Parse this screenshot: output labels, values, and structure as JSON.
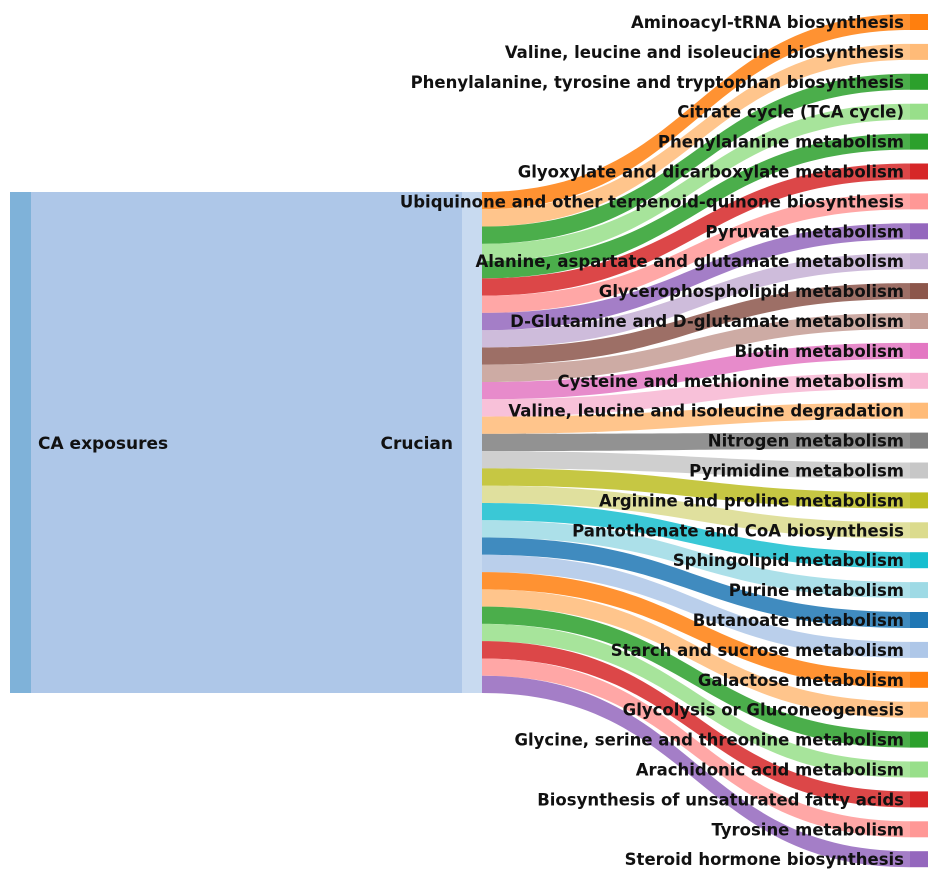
{
  "diagram": {
    "type": "sankey",
    "source_node": {
      "label": "CA exposures",
      "color": "#aec7e8",
      "edge_color": "#7fb2d9"
    },
    "middle_node": {
      "label": "Crucian",
      "color": "#aec7e8",
      "bar_color": "#c8daf0"
    },
    "targets": [
      {
        "label": "Aminoacyl-tRNA biosynthesis",
        "color": "#ff7f0e"
      },
      {
        "label": "Valine, leucine and isoleucine biosynthesis",
        "color": "#ffbb78"
      },
      {
        "label": "Phenylalanine, tyrosine and tryptophan biosynthesis",
        "color": "#2ca02c"
      },
      {
        "label": "Citrate cycle (TCA cycle)",
        "color": "#98df8a"
      },
      {
        "label": "Phenylalanine metabolism",
        "color": "#2ca02c"
      },
      {
        "label": "Glyoxylate and dicarboxylate metabolism",
        "color": "#d62728"
      },
      {
        "label": "Ubiquinone and other terpenoid-quinone biosynthesis",
        "color": "#ff9896"
      },
      {
        "label": "Pyruvate metabolism",
        "color": "#9467bd"
      },
      {
        "label": "Alanine, aspartate and glutamate metabolism",
        "color": "#c5b0d5"
      },
      {
        "label": "Glycerophospholipid metabolism",
        "color": "#8c564b"
      },
      {
        "label": "D-Glutamine and D-glutamate metabolism",
        "color": "#c49c94"
      },
      {
        "label": "Biotin metabolism",
        "color": "#e377c2"
      },
      {
        "label": "Cysteine and methionine metabolism",
        "color": "#f7b6d2"
      },
      {
        "label": "Valine, leucine and isoleucine degradation",
        "color": "#ffbb78"
      },
      {
        "label": "Nitrogen metabolism",
        "color": "#7f7f7f"
      },
      {
        "label": "Pyrimidine metabolism",
        "color": "#c7c7c7"
      },
      {
        "label": "Arginine and proline metabolism",
        "color": "#bcbd22"
      },
      {
        "label": "Pantothenate and CoA biosynthesis",
        "color": "#dbdb8d"
      },
      {
        "label": "Sphingolipid metabolism",
        "color": "#17becf"
      },
      {
        "label": "Purine metabolism",
        "color": "#9edae5"
      },
      {
        "label": "Butanoate metabolism",
        "color": "#1f77b4"
      },
      {
        "label": "Starch and sucrose metabolism",
        "color": "#aec7e8"
      },
      {
        "label": "Galactose metabolism",
        "color": "#ff7f0e"
      },
      {
        "label": "Glycolysis or Gluconeogenesis",
        "color": "#ffbb78"
      },
      {
        "label": "Glycine, serine and threonine metabolism",
        "color": "#2ca02c"
      },
      {
        "label": "Arachidonic acid metabolism",
        "color": "#98df8a"
      },
      {
        "label": "Biosynthesis of unsaturated fatty acids",
        "color": "#d62728"
      },
      {
        "label": "Tyrosine metabolism",
        "color": "#ff9896"
      },
      {
        "label": "Steroid hormone biosynthesis",
        "color": "#9467bd"
      }
    ]
  }
}
